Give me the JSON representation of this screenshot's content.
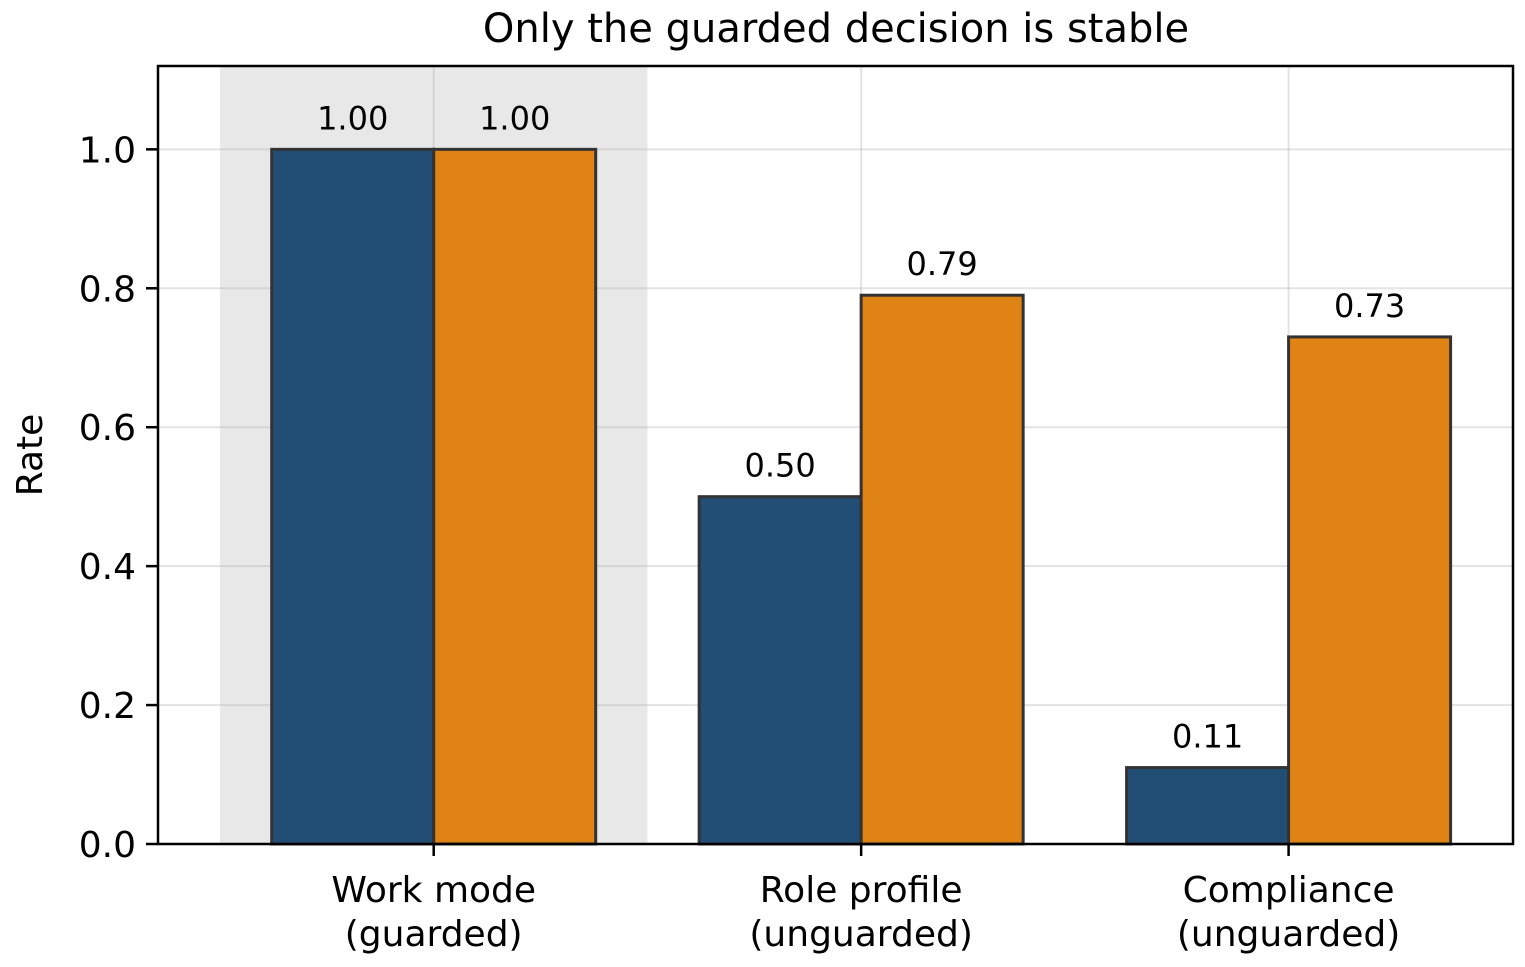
{
  "chart_data": {
    "type": "bar",
    "title": "Only the guarded decision is stable",
    "xlabel": "",
    "ylabel": "Rate",
    "ylim": [
      0,
      1.12
    ],
    "yticks": [
      "0.0",
      "0.2",
      "0.4",
      "0.6",
      "0.8",
      "1.0"
    ],
    "grid": true,
    "legend": "none",
    "categories": [
      [
        "Work mode",
        "(guarded)"
      ],
      [
        "Role profile",
        "(unguarded)"
      ],
      [
        "Compliance",
        "(unguarded)"
      ]
    ],
    "highlighted_category": 0,
    "series": [
      {
        "color": "#224e76",
        "values": [
          1.0,
          0.5,
          0.11
        ],
        "labels": [
          "1.00",
          "0.50",
          "0.11"
        ]
      },
      {
        "color": "#e08315",
        "values": [
          1.0,
          0.79,
          0.73
        ],
        "labels": [
          "1.00",
          "0.79",
          "0.73"
        ]
      }
    ],
    "highlight_color": "#e8e8e8",
    "edge_color": "#333333"
  }
}
